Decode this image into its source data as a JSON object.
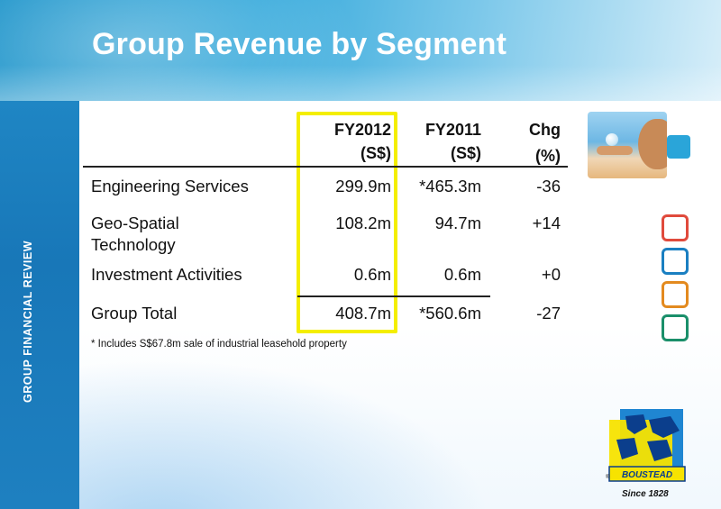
{
  "slide": {
    "title": "Group Revenue by Segment",
    "side_label": "GROUP FINANCIAL REVIEW"
  },
  "table": {
    "headers": {
      "fy2012": [
        "FY2012",
        "(S$)"
      ],
      "fy2011": [
        "FY2011",
        "(S$)"
      ],
      "chg": [
        "Chg",
        "(%)"
      ]
    },
    "rows": [
      {
        "segment": "Engineering Services",
        "fy2012": "299.9m",
        "fy2011": "*465.3m",
        "chg": "-36"
      },
      {
        "segment": "Geo-Spatial\nTechnology",
        "fy2012": "108.2m",
        "fy2011": "94.7m",
        "chg": "+14"
      },
      {
        "segment": "Investment Activities",
        "fy2012": "0.6m",
        "fy2011": "0.6m",
        "chg": "+0"
      },
      {
        "segment": "Group Total",
        "fy2012": "408.7m",
        "fy2011": "*560.6m",
        "chg": "-27"
      }
    ],
    "highlighted_column": "FY2012",
    "highlight_color": "#f4ee00"
  },
  "footnote": "* Includes S$67.8m sale of industrial leasehold property",
  "decorations": {
    "accent_squares": [
      {
        "color": "#e04a3c"
      },
      {
        "color": "#1a7fc1"
      },
      {
        "color": "#e38a1f"
      },
      {
        "color": "#1a8f6a"
      }
    ]
  },
  "logo": {
    "brand": "BOUSTEAD",
    "tagline": "Since 1828",
    "registered_mark": "®"
  }
}
